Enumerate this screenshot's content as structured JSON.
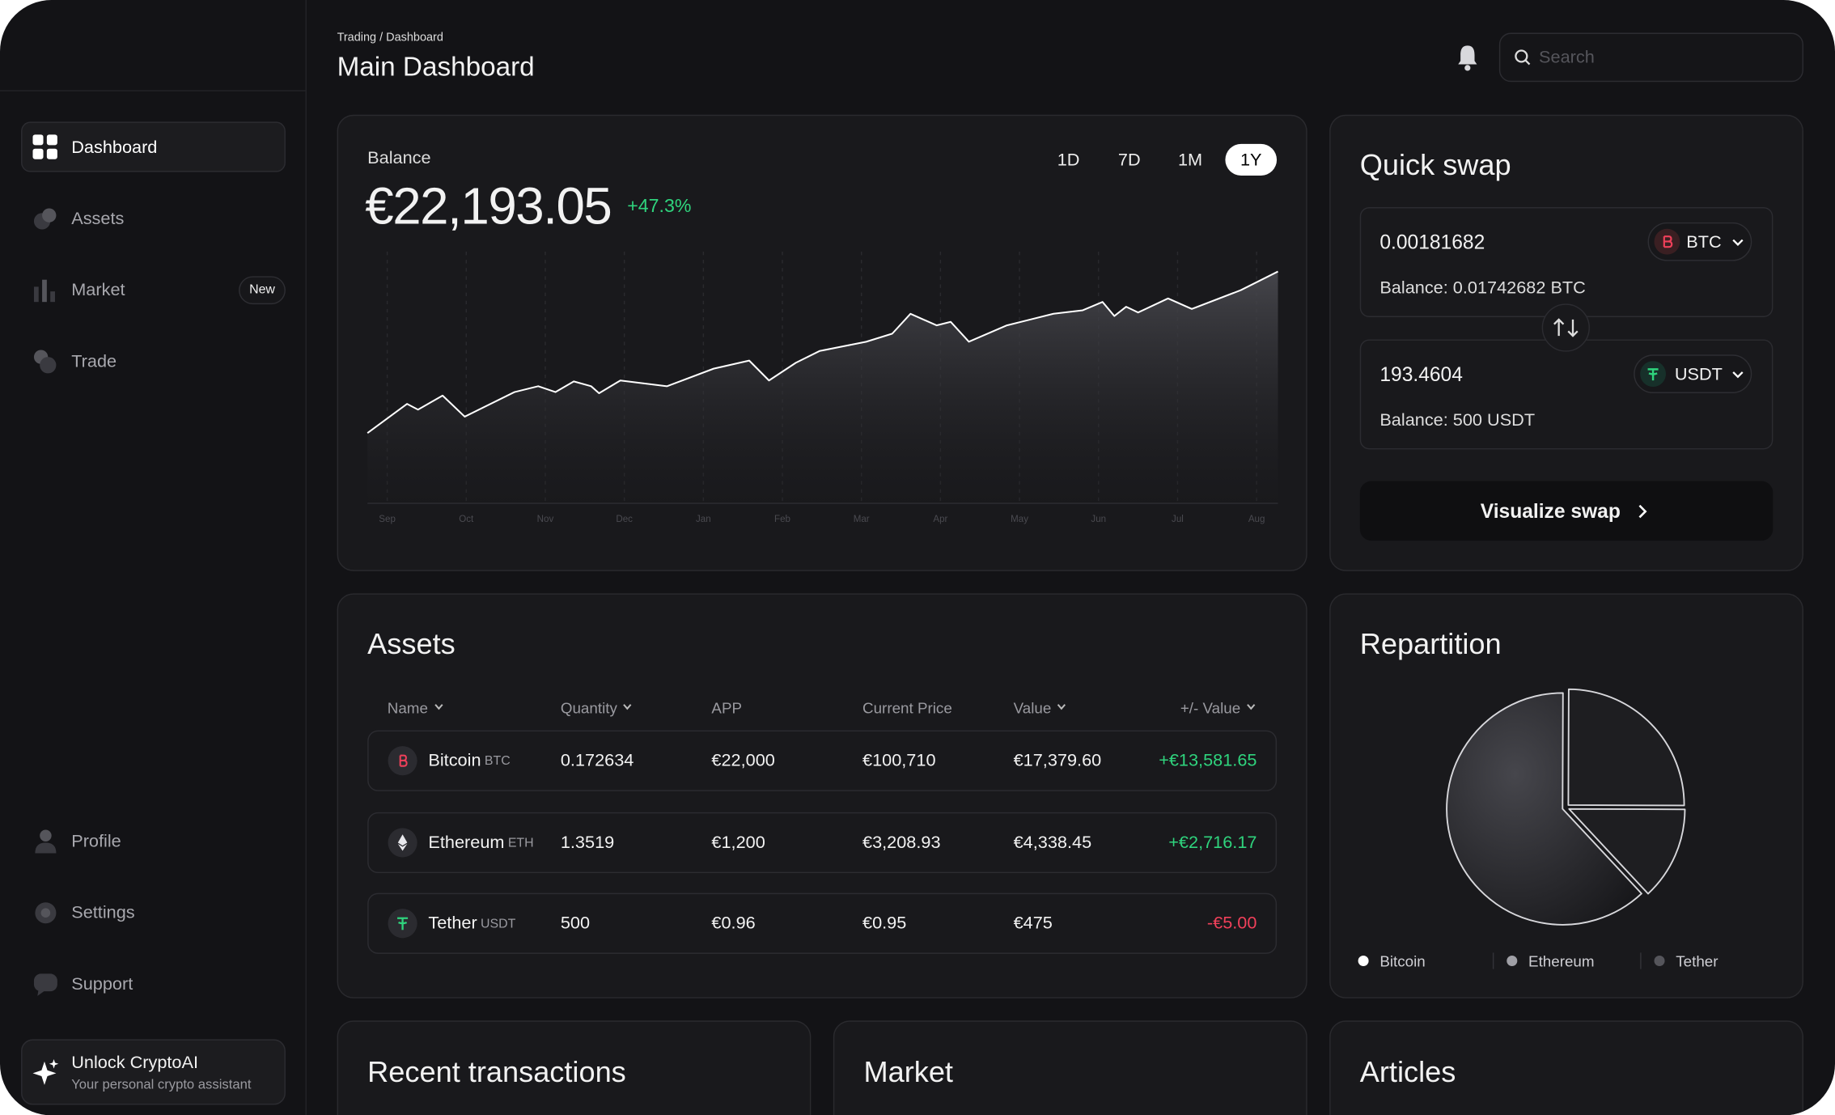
{
  "sidebar": {
    "nav": [
      {
        "label": "Dashboard"
      },
      {
        "label": "Assets"
      },
      {
        "label": "Market",
        "badge": "New"
      },
      {
        "label": "Trade"
      }
    ],
    "active": "Dashboard",
    "bottom_nav": [
      "Profile",
      "Settings",
      "Support"
    ],
    "promo": {
      "title": "Unlock CryptoAI",
      "subtitle": "Your personal crypto assistant"
    }
  },
  "header": {
    "breadcrumb": "Trading / Dashboard",
    "title": "Main Dashboard",
    "search_placeholder": "Search"
  },
  "balance": {
    "label": "Balance",
    "amount": "€22,193.05",
    "change": "+47.3%",
    "ranges": [
      "1D",
      "7D",
      "1M",
      "1Y"
    ],
    "active_range": "1Y"
  },
  "chart_data": [
    {
      "type": "line",
      "x": [
        -0.25,
        0.25,
        0.39,
        0.7,
        0.98,
        1.61,
        1.91,
        2.13,
        2.36,
        2.58,
        2.68,
        2.95,
        3.54,
        4.13,
        4.58,
        4.83,
        5.17,
        5.47,
        6.06,
        6.39,
        6.62,
        6.95,
        7.13,
        7.36,
        7.84,
        8.43,
        8.8,
        9.05,
        9.2,
        9.35,
        9.5,
        9.88,
        10.18,
        10.8,
        11.27
      ],
      "values": [
        27.9,
        39.5,
        37.2,
        42.8,
        34.4,
        44.2,
        46.5,
        44.2,
        48.4,
        46.5,
        43.7,
        48.8,
        46.5,
        53.5,
        56.7,
        48.8,
        55.8,
        60.5,
        64.2,
        67.4,
        75.3,
        70.7,
        72.1,
        64.2,
        70.7,
        75.3,
        76.7,
        80,
        74.4,
        78.1,
        75.8,
        81.4,
        77.2,
        84.7,
        92.1
      ],
      "color": "#ffffff",
      "xlim": [
        -0.25,
        11.27
      ],
      "ylim": [
        0,
        100
      ],
      "xticks": [
        {
          "value": 0,
          "label": "Sep"
        },
        {
          "value": 1,
          "label": "Oct"
        },
        {
          "value": 2,
          "label": "Nov"
        },
        {
          "value": 3,
          "label": "Dec"
        },
        {
          "value": 4,
          "label": "Jan"
        },
        {
          "value": 5,
          "label": "Feb"
        },
        {
          "value": 6,
          "label": "Mar"
        },
        {
          "value": 7,
          "label": "Apr"
        },
        {
          "value": 8,
          "label": "May"
        },
        {
          "value": 9,
          "label": "Jun"
        },
        {
          "value": 10,
          "label": "Jul"
        },
        {
          "value": 11,
          "label": "Aug"
        }
      ],
      "grid": true
    },
    {
      "type": "pie",
      "title": "Repartition",
      "categories": [
        "Bitcoin",
        "Ethereum",
        "Tether"
      ],
      "values": [
        62,
        25,
        13
      ],
      "colors": [
        "#ffffff",
        "#a0a0a6",
        "#55555b"
      ]
    }
  ],
  "quick_swap": {
    "title": "Quick swap",
    "from": {
      "amount": "0.00181682",
      "currency": "BTC",
      "balance": "Balance: 0.01742682 BTC"
    },
    "to": {
      "amount": "193.4604",
      "currency": "USDT",
      "balance": "Balance: 500 USDT"
    },
    "button": "Visualize swap"
  },
  "assets": {
    "title": "Assets",
    "columns": [
      "Name",
      "Quantity",
      "APP",
      "Current Price",
      "Value",
      "+/- Value"
    ],
    "rows": [
      {
        "name": "Bitcoin",
        "symbol": "BTC",
        "quantity": "0.172634",
        "app": "€22,000",
        "price": "€100,710",
        "value": "€17,379.60",
        "change": "+€13,581.65"
      },
      {
        "name": "Ethereum",
        "symbol": "ETH",
        "quantity": "1.3519",
        "app": "€1,200",
        "price": "€3,208.93",
        "value": "€4,338.45",
        "change": "+€2,716.17"
      },
      {
        "name": "Tether",
        "symbol": "USDT",
        "quantity": "500",
        "app": "€0.96",
        "price": "€0.95",
        "value": "€475",
        "change": "-€5.00"
      }
    ]
  },
  "bottom_cards": [
    "Recent transactions",
    "Market",
    "Articles"
  ]
}
